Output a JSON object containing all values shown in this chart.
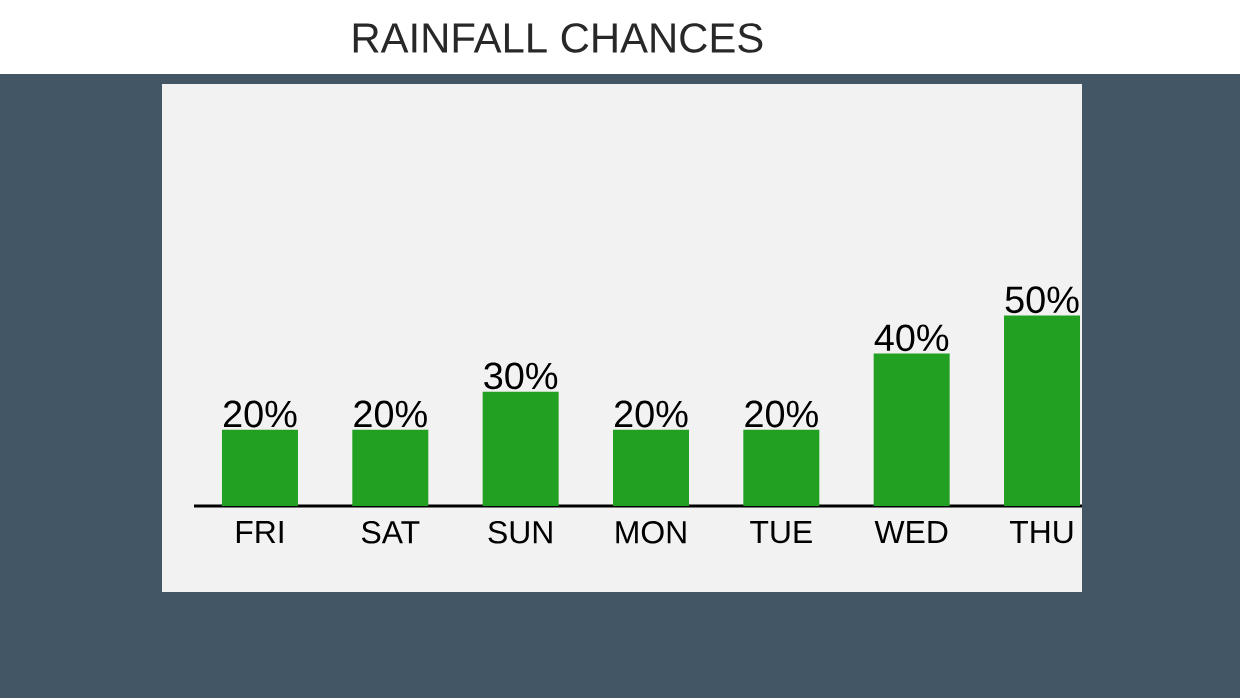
{
  "chart_data": {
    "type": "bar",
    "title": "RAINFALL CHANCES",
    "categories": [
      "FRI",
      "SAT",
      "SUN",
      "MON",
      "TUE",
      "WED",
      "THU"
    ],
    "values": [
      20,
      20,
      30,
      20,
      20,
      40,
      50
    ],
    "value_labels": [
      "20%",
      "20%",
      "30%",
      "20%",
      "20%",
      "40%",
      "50%"
    ],
    "color": "#22a022"
  }
}
